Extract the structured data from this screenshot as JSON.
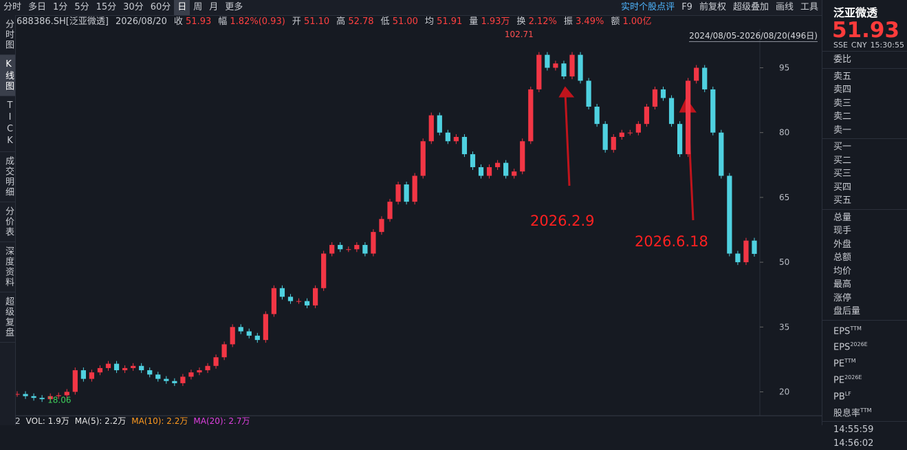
{
  "toolbar": {
    "periods": [
      "分时",
      "多日",
      "1分",
      "5分",
      "15分",
      "30分",
      "60分",
      "日",
      "周",
      "月",
      "更多"
    ],
    "tools": [
      "实时个股点评",
      "F9",
      "前复权",
      "超级叠加",
      "画线",
      "工具"
    ]
  },
  "side_tabs": [
    "分时图",
    "K线图",
    "TICK",
    "成交明细",
    "分价表",
    "深度资料",
    "超级复盘"
  ],
  "info": {
    "code": "688386.SH[泛亚微透]",
    "date": "2026/08/20",
    "fields": [
      {
        "label": "收",
        "value": "51.93"
      },
      {
        "label": "幅",
        "value": "1.82%(0.93)"
      },
      {
        "label": "开",
        "value": "51.10"
      },
      {
        "label": "高",
        "value": "52.78"
      },
      {
        "label": "低",
        "value": "51.00"
      },
      {
        "label": "均",
        "value": "51.91"
      },
      {
        "label": "量",
        "value": "1.93万"
      },
      {
        "label": "换",
        "value": "2.12%"
      },
      {
        "label": "振",
        "value": "3.49%"
      },
      {
        "label": "额",
        "value": "1.00亿"
      }
    ]
  },
  "chart_data": {
    "type": "candlestick",
    "range_label": "2024/08/05-2026/08/20(496日)",
    "values": [
      19.5,
      19,
      18.6,
      18.3,
      19,
      19.2,
      20,
      25,
      23,
      24.5,
      25.5,
      26.5,
      25,
      25.5,
      26,
      25,
      24,
      23,
      22.5,
      22,
      23.5,
      24.5,
      25,
      26,
      28,
      31,
      35,
      34,
      33,
      32,
      38,
      44,
      42,
      41,
      41,
      40,
      44,
      52,
      54,
      53,
      53,
      54,
      52,
      57,
      60,
      64,
      68,
      64,
      70,
      78,
      84,
      80,
      78,
      79,
      75,
      72,
      70,
      72,
      73,
      70,
      71,
      78,
      90,
      98,
      95,
      96,
      93,
      98,
      92,
      86,
      82,
      76,
      79,
      80,
      80,
      82,
      86,
      90,
      88,
      82,
      75,
      92,
      95,
      90,
      80,
      70,
      52,
      50,
      55,
      51.93
    ],
    "up_color": "#f23645",
    "down_color": "#4fd1e0",
    "ylim": [
      14.5,
      104
    ],
    "yticks": [
      20,
      35,
      50,
      65,
      80,
      95
    ],
    "max_price": 102.71,
    "min_price": 18.06,
    "annotations": [
      "2026.2.9",
      "2026.6.18"
    ]
  },
  "volume": {
    "panel": "2",
    "labels": [
      "VOL: 1.9万",
      "MA(5): 2.2万",
      "MA(10): 2.2万",
      "MA(20): 2.7万"
    ]
  },
  "quote": {
    "name": "泛亚微透",
    "price": "51.93",
    "market": "SSE",
    "currency": "CNY",
    "time": "15:30:55",
    "rows": [
      "委比",
      "卖五",
      "卖四",
      "卖三",
      "卖二",
      "卖一",
      "买一",
      "买二",
      "买三",
      "买四",
      "买五",
      "总量",
      "现手",
      "外盘",
      "总额",
      "均价",
      "最高",
      "涨停",
      "盘后量"
    ],
    "fundamentals": [
      {
        "label": "EPS",
        "sup": "TTM"
      },
      {
        "label": "EPS",
        "sup": "2026E"
      },
      {
        "label": "PE",
        "sup": "TTM"
      },
      {
        "label": "PE",
        "sup": "2026E"
      },
      {
        "label": "PB",
        "sup": "LF"
      },
      {
        "label": "股息率",
        "sup": "TTM"
      }
    ],
    "ticks": [
      "14:55:59",
      "14:56:02"
    ]
  }
}
